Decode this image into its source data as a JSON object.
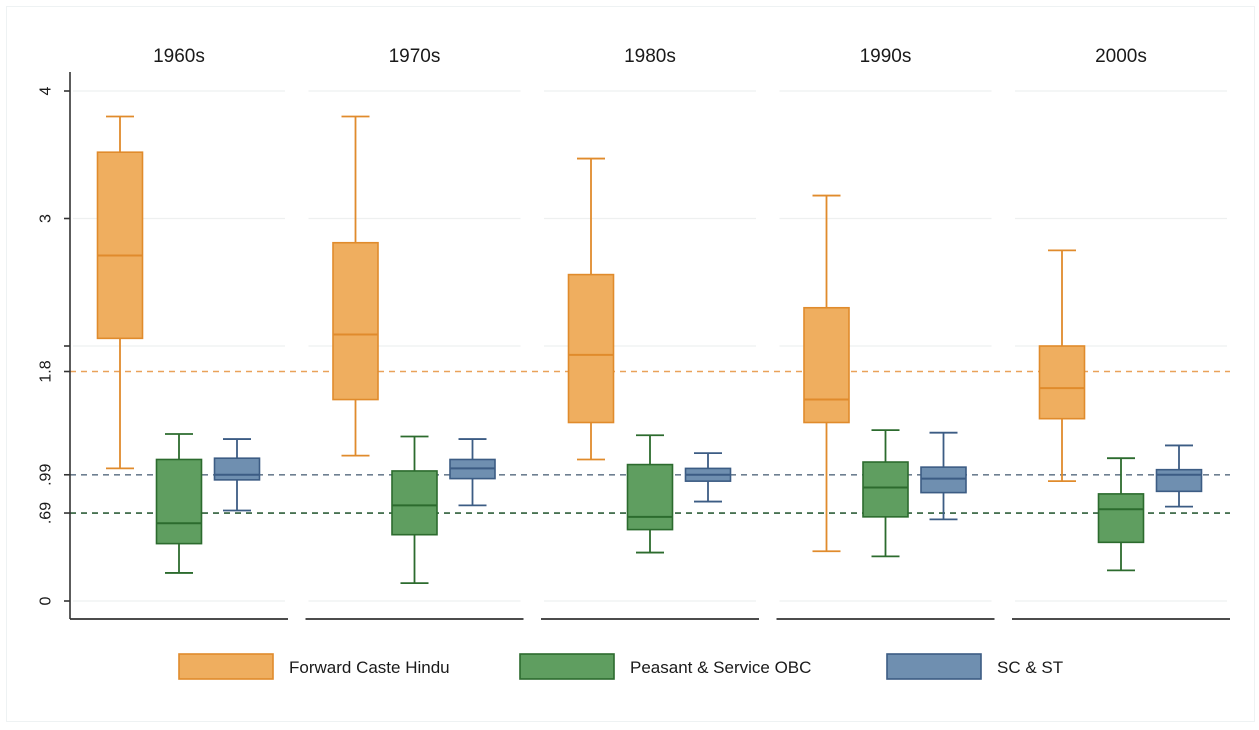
{
  "chart_data": {
    "type": "box",
    "title": "",
    "xlabel": "",
    "ylabel": "",
    "ylim": [
      0,
      4.08
    ],
    "grid": true,
    "legend_position": "bottom",
    "yticks": [
      {
        "value": 0,
        "label": "0"
      },
      {
        "value": 0.69,
        "label": ".69"
      },
      {
        "value": 0.99,
        "label": ".99"
      },
      {
        "value": 1.8,
        "label": "1.8"
      },
      {
        "value": 2,
        "label": ""
      },
      {
        "value": 3,
        "label": "3"
      },
      {
        "value": 4,
        "label": "4"
      }
    ],
    "gridlines": [
      0,
      2,
      3,
      4
    ],
    "panels": [
      "1960s",
      "1970s",
      "1980s",
      "1990s",
      "2000s"
    ],
    "series": [
      {
        "name": "Forward Caste Hindu",
        "fill": "#efae5f",
        "stroke": "#e08b2c",
        "reference_line": 1.8,
        "reference_color": "#e9a25a",
        "boxes": [
          {
            "whisker_low": 1.04,
            "q1": 2.06,
            "median": 2.71,
            "q3": 3.52,
            "whisker_high": 3.8
          },
          {
            "whisker_low": 1.14,
            "q1": 1.58,
            "median": 2.09,
            "q3": 2.81,
            "whisker_high": 3.8
          },
          {
            "whisker_low": 1.11,
            "q1": 1.4,
            "median": 1.93,
            "q3": 2.56,
            "whisker_high": 3.47
          },
          {
            "whisker_low": 0.39,
            "q1": 1.4,
            "median": 1.58,
            "q3": 2.3,
            "whisker_high": 3.18
          },
          {
            "whisker_low": 0.94,
            "q1": 1.43,
            "median": 1.67,
            "q3": 2.0,
            "whisker_high": 2.75
          }
        ]
      },
      {
        "name": "Peasant & Service OBC",
        "fill": "#5f9e60",
        "stroke": "#2c6b2e",
        "reference_line": 0.69,
        "reference_color": "#2f5f3a",
        "boxes": [
          {
            "whisker_low": 0.22,
            "q1": 0.45,
            "median": 0.61,
            "q3": 1.11,
            "whisker_high": 1.31
          },
          {
            "whisker_low": 0.14,
            "q1": 0.52,
            "median": 0.75,
            "q3": 1.02,
            "whisker_high": 1.29
          },
          {
            "whisker_low": 0.38,
            "q1": 0.56,
            "median": 0.66,
            "q3": 1.07,
            "whisker_high": 1.3
          },
          {
            "whisker_low": 0.35,
            "q1": 0.66,
            "median": 0.89,
            "q3": 1.09,
            "whisker_high": 1.34
          },
          {
            "whisker_low": 0.24,
            "q1": 0.46,
            "median": 0.72,
            "q3": 0.84,
            "whisker_high": 1.12
          }
        ]
      },
      {
        "name": "SC & ST",
        "fill": "#6f8fb0",
        "stroke": "#3c5c84",
        "reference_line": 0.99,
        "reference_color": "#6e7f91",
        "boxes": [
          {
            "whisker_low": 0.71,
            "q1": 0.95,
            "median": 0.99,
            "q3": 1.12,
            "whisker_high": 1.27
          },
          {
            "whisker_low": 0.75,
            "q1": 0.96,
            "median": 1.04,
            "q3": 1.11,
            "whisker_high": 1.27
          },
          {
            "whisker_low": 0.78,
            "q1": 0.94,
            "median": 0.99,
            "q3": 1.04,
            "whisker_high": 1.16
          },
          {
            "whisker_low": 0.64,
            "q1": 0.85,
            "median": 0.96,
            "q3": 1.05,
            "whisker_high": 1.32
          },
          {
            "whisker_low": 0.74,
            "q1": 0.86,
            "median": 0.99,
            "q3": 1.03,
            "whisker_high": 1.22
          }
        ]
      }
    ]
  }
}
